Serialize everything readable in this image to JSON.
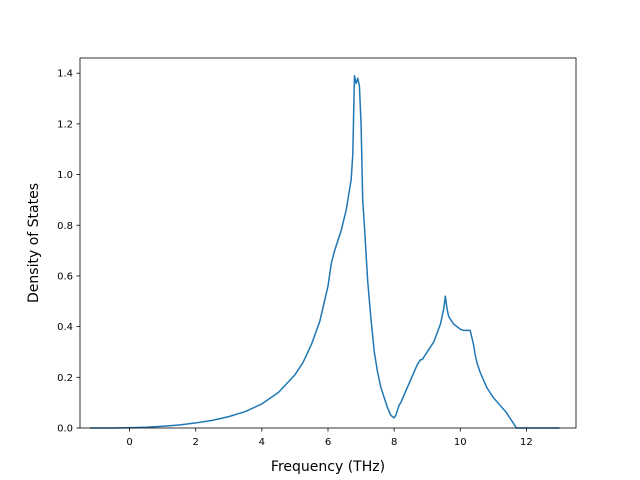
{
  "chart_data": {
    "type": "line",
    "title": "",
    "xlabel": "Frequency (THz)",
    "ylabel": "Density of States",
    "xlim": [
      -1.5,
      13.5
    ],
    "ylim": [
      0.0,
      1.46
    ],
    "xticks": [
      0,
      2,
      4,
      6,
      8,
      10,
      12
    ],
    "yticks": [
      0.0,
      0.2,
      0.4,
      0.6,
      0.8,
      1.0,
      1.2,
      1.4
    ],
    "xtick_labels": [
      "0",
      "2",
      "4",
      "6",
      "8",
      "10",
      "12"
    ],
    "ytick_labels": [
      "0.0",
      "0.2",
      "0.4",
      "0.6",
      "0.8",
      "1.0",
      "1.2",
      "1.4"
    ],
    "grid": false,
    "legend": "none",
    "line_color": "#1f77b4",
    "series": [
      {
        "x": [
          -1.2,
          -0.5,
          0.0,
          0.5,
          1.0,
          1.5,
          2.0,
          2.5,
          3.0,
          3.5,
          4.0,
          4.5,
          5.0,
          5.25,
          5.5,
          5.75,
          6.0,
          6.1,
          6.2,
          6.4,
          6.55,
          6.7,
          6.75,
          6.8,
          6.85,
          6.9,
          6.95,
          7.0,
          7.05,
          7.1,
          7.2,
          7.3,
          7.4,
          7.5,
          7.6,
          7.7,
          7.8,
          7.9,
          8.0,
          8.05,
          8.1,
          8.15,
          8.2,
          8.3,
          8.5,
          8.7,
          8.8,
          8.85,
          8.9,
          9.0,
          9.2,
          9.4,
          9.5,
          9.55,
          9.6,
          9.65,
          9.7,
          9.75,
          9.8,
          9.9,
          10.0,
          10.1,
          10.2,
          10.3,
          10.4,
          10.45,
          10.5,
          10.55,
          10.6,
          10.7,
          10.8,
          10.9,
          11.0,
          11.2,
          11.4,
          11.5,
          11.6,
          11.7,
          11.8,
          11.9,
          12.0,
          12.5,
          13.0
        ],
        "y": [
          0.0,
          0.0,
          0.001,
          0.003,
          0.007,
          0.012,
          0.02,
          0.03,
          0.045,
          0.065,
          0.095,
          0.14,
          0.21,
          0.26,
          0.33,
          0.42,
          0.56,
          0.65,
          0.7,
          0.78,
          0.86,
          0.98,
          1.08,
          1.39,
          1.36,
          1.38,
          1.35,
          1.2,
          0.9,
          0.8,
          0.58,
          0.43,
          0.3,
          0.22,
          0.16,
          0.12,
          0.08,
          0.05,
          0.04,
          0.05,
          0.07,
          0.09,
          0.1,
          0.13,
          0.19,
          0.25,
          0.27,
          0.27,
          0.28,
          0.3,
          0.34,
          0.41,
          0.47,
          0.52,
          0.47,
          0.44,
          0.43,
          0.42,
          0.41,
          0.4,
          0.39,
          0.385,
          0.385,
          0.385,
          0.33,
          0.29,
          0.26,
          0.24,
          0.22,
          0.19,
          0.16,
          0.14,
          0.12,
          0.09,
          0.06,
          0.04,
          0.02,
          0.0,
          0.0,
          0.0,
          0.0,
          0.0,
          0.0
        ]
      }
    ]
  }
}
